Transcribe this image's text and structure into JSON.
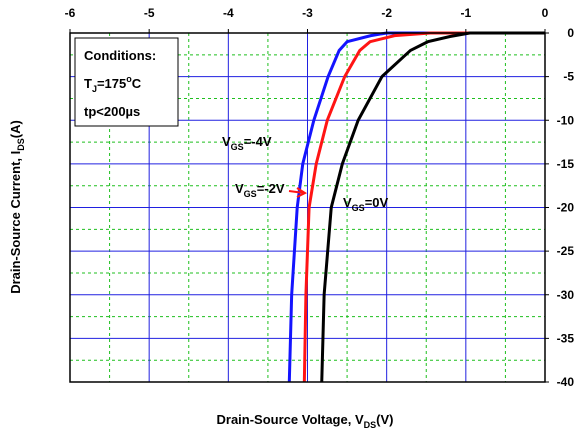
{
  "chart_data": {
    "type": "line",
    "xlim": [
      -6,
      0
    ],
    "xticks": [
      -6,
      -5,
      -4,
      -3,
      -2,
      -1,
      0
    ],
    "ylim": [
      -40,
      0
    ],
    "yticks": [
      0,
      -5,
      -10,
      -15,
      -20,
      -25,
      -30,
      -35,
      -40
    ],
    "grid": true,
    "minor_grid": true,
    "x_label": {
      "main": "Drain-Source Voltage, V",
      "sub": "DS",
      "rest": "(V)"
    },
    "y_label": {
      "main": "Drain-Source Current, I",
      "sub": "DS",
      "rest": "(A)"
    },
    "conditions": {
      "title": "Conditions:",
      "tj": {
        "main": "T",
        "sub": "J",
        "rest": "=175",
        "sup": "o",
        "unit": "C"
      },
      "tp": "tp<200µs"
    },
    "series": [
      {
        "label": {
          "main": "V",
          "sub": "GS",
          "rest": "=-4V"
        },
        "color": "#1414ff",
        "x": [
          -3.23,
          -3.2,
          -3.13,
          -3.06,
          -2.92,
          -2.74,
          -2.6,
          -2.5,
          -2.2,
          -2.0,
          -1,
          0
        ],
        "values": [
          -40,
          -30,
          -20,
          -15,
          -10,
          -5,
          -2,
          -1,
          -0.3,
          0,
          0,
          0
        ]
      },
      {
        "label": {
          "main": "V",
          "sub": "GS",
          "rest": "=-2V"
        },
        "color": "#ff1414",
        "x": [
          -3.04,
          -3.02,
          -2.98,
          -2.89,
          -2.75,
          -2.53,
          -2.34,
          -2.21,
          -1.9,
          -1.45,
          -1,
          0
        ],
        "values": [
          -40,
          -30,
          -20,
          -15,
          -10,
          -5,
          -2,
          -1,
          -0.3,
          0,
          0,
          0
        ]
      },
      {
        "label": {
          "main": "V",
          "sub": "GS",
          "rest": "=0V"
        },
        "color": "#000000",
        "x": [
          -2.82,
          -2.79,
          -2.7,
          -2.56,
          -2.36,
          -2.06,
          -1.7,
          -1.48,
          -1.2,
          -0.95,
          -0.5,
          0
        ],
        "values": [
          -40,
          -30,
          -20,
          -15,
          -10,
          -5,
          -2,
          -1,
          -0.4,
          0,
          0,
          0
        ]
      }
    ]
  }
}
